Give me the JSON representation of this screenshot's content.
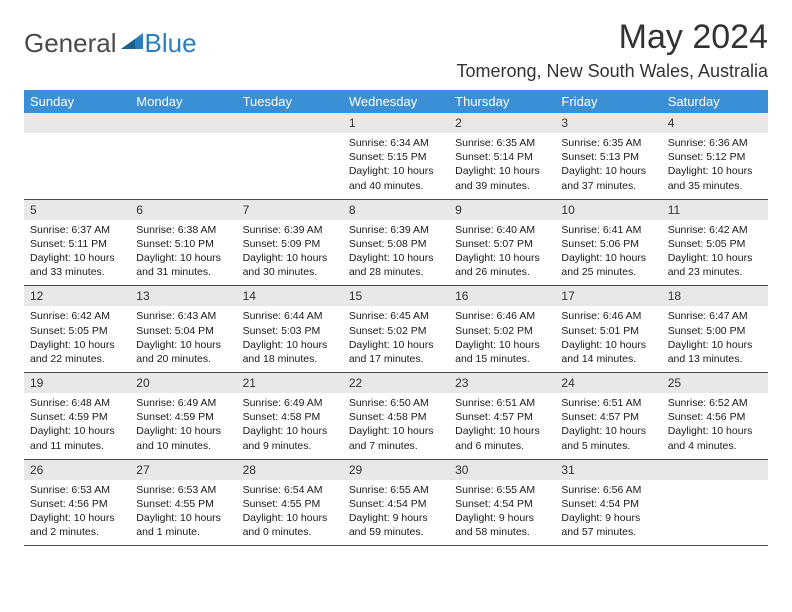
{
  "logo": {
    "part1": "General",
    "part2": "Blue"
  },
  "title": "May 2024",
  "location": "Tomerong, New South Wales, Australia",
  "colors": {
    "header_bg": "#3b8fd4",
    "header_text": "#ffffff",
    "daynum_bg": "#e8e8e8",
    "text": "#1a1a1a",
    "border": "#4a4a4a",
    "logo_gray": "#4a4a4a",
    "logo_blue": "#2a7fbf"
  },
  "weekdays": [
    "Sunday",
    "Monday",
    "Tuesday",
    "Wednesday",
    "Thursday",
    "Friday",
    "Saturday"
  ],
  "weeks": [
    [
      null,
      null,
      null,
      {
        "n": "1",
        "sr": "Sunrise: 6:34 AM",
        "ss": "Sunset: 5:15 PM",
        "dl1": "Daylight: 10 hours",
        "dl2": "and 40 minutes."
      },
      {
        "n": "2",
        "sr": "Sunrise: 6:35 AM",
        "ss": "Sunset: 5:14 PM",
        "dl1": "Daylight: 10 hours",
        "dl2": "and 39 minutes."
      },
      {
        "n": "3",
        "sr": "Sunrise: 6:35 AM",
        "ss": "Sunset: 5:13 PM",
        "dl1": "Daylight: 10 hours",
        "dl2": "and 37 minutes."
      },
      {
        "n": "4",
        "sr": "Sunrise: 6:36 AM",
        "ss": "Sunset: 5:12 PM",
        "dl1": "Daylight: 10 hours",
        "dl2": "and 35 minutes."
      }
    ],
    [
      {
        "n": "5",
        "sr": "Sunrise: 6:37 AM",
        "ss": "Sunset: 5:11 PM",
        "dl1": "Daylight: 10 hours",
        "dl2": "and 33 minutes."
      },
      {
        "n": "6",
        "sr": "Sunrise: 6:38 AM",
        "ss": "Sunset: 5:10 PM",
        "dl1": "Daylight: 10 hours",
        "dl2": "and 31 minutes."
      },
      {
        "n": "7",
        "sr": "Sunrise: 6:39 AM",
        "ss": "Sunset: 5:09 PM",
        "dl1": "Daylight: 10 hours",
        "dl2": "and 30 minutes."
      },
      {
        "n": "8",
        "sr": "Sunrise: 6:39 AM",
        "ss": "Sunset: 5:08 PM",
        "dl1": "Daylight: 10 hours",
        "dl2": "and 28 minutes."
      },
      {
        "n": "9",
        "sr": "Sunrise: 6:40 AM",
        "ss": "Sunset: 5:07 PM",
        "dl1": "Daylight: 10 hours",
        "dl2": "and 26 minutes."
      },
      {
        "n": "10",
        "sr": "Sunrise: 6:41 AM",
        "ss": "Sunset: 5:06 PM",
        "dl1": "Daylight: 10 hours",
        "dl2": "and 25 minutes."
      },
      {
        "n": "11",
        "sr": "Sunrise: 6:42 AM",
        "ss": "Sunset: 5:05 PM",
        "dl1": "Daylight: 10 hours",
        "dl2": "and 23 minutes."
      }
    ],
    [
      {
        "n": "12",
        "sr": "Sunrise: 6:42 AM",
        "ss": "Sunset: 5:05 PM",
        "dl1": "Daylight: 10 hours",
        "dl2": "and 22 minutes."
      },
      {
        "n": "13",
        "sr": "Sunrise: 6:43 AM",
        "ss": "Sunset: 5:04 PM",
        "dl1": "Daylight: 10 hours",
        "dl2": "and 20 minutes."
      },
      {
        "n": "14",
        "sr": "Sunrise: 6:44 AM",
        "ss": "Sunset: 5:03 PM",
        "dl1": "Daylight: 10 hours",
        "dl2": "and 18 minutes."
      },
      {
        "n": "15",
        "sr": "Sunrise: 6:45 AM",
        "ss": "Sunset: 5:02 PM",
        "dl1": "Daylight: 10 hours",
        "dl2": "and 17 minutes."
      },
      {
        "n": "16",
        "sr": "Sunrise: 6:46 AM",
        "ss": "Sunset: 5:02 PM",
        "dl1": "Daylight: 10 hours",
        "dl2": "and 15 minutes."
      },
      {
        "n": "17",
        "sr": "Sunrise: 6:46 AM",
        "ss": "Sunset: 5:01 PM",
        "dl1": "Daylight: 10 hours",
        "dl2": "and 14 minutes."
      },
      {
        "n": "18",
        "sr": "Sunrise: 6:47 AM",
        "ss": "Sunset: 5:00 PM",
        "dl1": "Daylight: 10 hours",
        "dl2": "and 13 minutes."
      }
    ],
    [
      {
        "n": "19",
        "sr": "Sunrise: 6:48 AM",
        "ss": "Sunset: 4:59 PM",
        "dl1": "Daylight: 10 hours",
        "dl2": "and 11 minutes."
      },
      {
        "n": "20",
        "sr": "Sunrise: 6:49 AM",
        "ss": "Sunset: 4:59 PM",
        "dl1": "Daylight: 10 hours",
        "dl2": "and 10 minutes."
      },
      {
        "n": "21",
        "sr": "Sunrise: 6:49 AM",
        "ss": "Sunset: 4:58 PM",
        "dl1": "Daylight: 10 hours",
        "dl2": "and 9 minutes."
      },
      {
        "n": "22",
        "sr": "Sunrise: 6:50 AM",
        "ss": "Sunset: 4:58 PM",
        "dl1": "Daylight: 10 hours",
        "dl2": "and 7 minutes."
      },
      {
        "n": "23",
        "sr": "Sunrise: 6:51 AM",
        "ss": "Sunset: 4:57 PM",
        "dl1": "Daylight: 10 hours",
        "dl2": "and 6 minutes."
      },
      {
        "n": "24",
        "sr": "Sunrise: 6:51 AM",
        "ss": "Sunset: 4:57 PM",
        "dl1": "Daylight: 10 hours",
        "dl2": "and 5 minutes."
      },
      {
        "n": "25",
        "sr": "Sunrise: 6:52 AM",
        "ss": "Sunset: 4:56 PM",
        "dl1": "Daylight: 10 hours",
        "dl2": "and 4 minutes."
      }
    ],
    [
      {
        "n": "26",
        "sr": "Sunrise: 6:53 AM",
        "ss": "Sunset: 4:56 PM",
        "dl1": "Daylight: 10 hours",
        "dl2": "and 2 minutes."
      },
      {
        "n": "27",
        "sr": "Sunrise: 6:53 AM",
        "ss": "Sunset: 4:55 PM",
        "dl1": "Daylight: 10 hours",
        "dl2": "and 1 minute."
      },
      {
        "n": "28",
        "sr": "Sunrise: 6:54 AM",
        "ss": "Sunset: 4:55 PM",
        "dl1": "Daylight: 10 hours",
        "dl2": "and 0 minutes."
      },
      {
        "n": "29",
        "sr": "Sunrise: 6:55 AM",
        "ss": "Sunset: 4:54 PM",
        "dl1": "Daylight: 9 hours",
        "dl2": "and 59 minutes."
      },
      {
        "n": "30",
        "sr": "Sunrise: 6:55 AM",
        "ss": "Sunset: 4:54 PM",
        "dl1": "Daylight: 9 hours",
        "dl2": "and 58 minutes."
      },
      {
        "n": "31",
        "sr": "Sunrise: 6:56 AM",
        "ss": "Sunset: 4:54 PM",
        "dl1": "Daylight: 9 hours",
        "dl2": "and 57 minutes."
      },
      null
    ]
  ]
}
